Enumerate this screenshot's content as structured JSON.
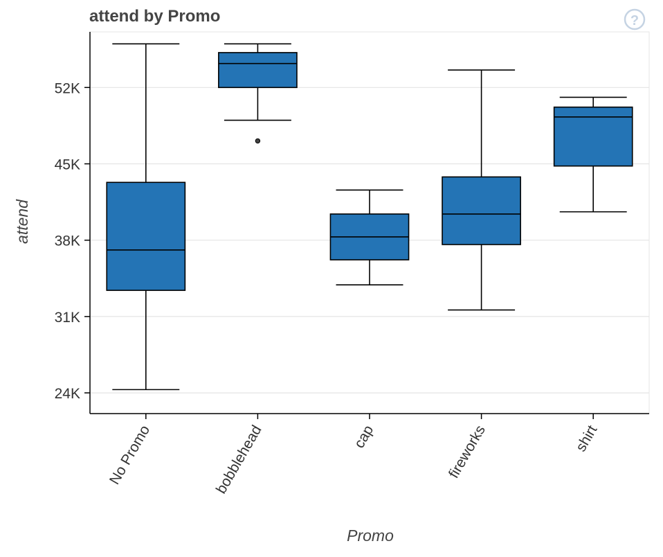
{
  "chart_data": {
    "type": "box",
    "title": "attend by Promo",
    "xlabel": "Promo",
    "ylabel": "attend",
    "categories": [
      "No Promo",
      "bobblehead",
      "cap",
      "fireworks",
      "shirt"
    ],
    "yticks": [
      24000,
      31000,
      38000,
      45000,
      52000
    ],
    "ytick_labels": [
      "24K",
      "31K",
      "38K",
      "45K",
      "52K"
    ],
    "ylim": [
      22100,
      57100
    ],
    "grid": "horizontal",
    "box_color": "#2474b5",
    "series": [
      {
        "category": "No Promo",
        "whisker_low": 24300,
        "q1": 33400,
        "median": 37100,
        "q3": 43300,
        "whisker_high": 56000,
        "outliers": []
      },
      {
        "category": "bobblehead",
        "whisker_low": 49000,
        "q1": 52000,
        "median": 54200,
        "q3": 55200,
        "whisker_high": 56000,
        "outliers": [
          47100
        ]
      },
      {
        "category": "cap",
        "whisker_low": 33900,
        "q1": 36200,
        "median": 38300,
        "q3": 40400,
        "whisker_high": 42600,
        "outliers": []
      },
      {
        "category": "fireworks",
        "whisker_low": 31600,
        "q1": 37600,
        "median": 40400,
        "q3": 43800,
        "whisker_high": 53600,
        "outliers": []
      },
      {
        "category": "shirt",
        "whisker_low": 40600,
        "q1": 44800,
        "median": 49300,
        "q3": 50200,
        "whisker_high": 51100,
        "outliers": []
      }
    ]
  },
  "toolbar": {
    "help_icon": "question-circle-icon"
  }
}
